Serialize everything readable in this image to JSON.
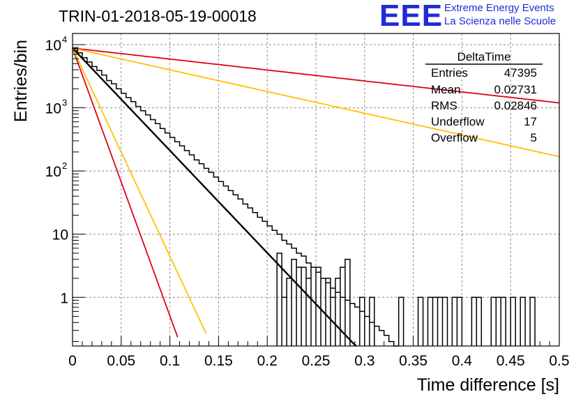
{
  "title": "TRIN-01-2018-05-19-00018",
  "logo": {
    "mark": "EEE",
    "line1": "Extreme Energy Events",
    "line2": "La Scienza nelle Scuole"
  },
  "stats": {
    "name": "DeltaTime",
    "rows": [
      {
        "label": "Entries",
        "value": "47395"
      },
      {
        "label": "Mean",
        "value": "0.02731"
      },
      {
        "label": "RMS",
        "value": "0.02846"
      },
      {
        "label": "Underflow",
        "value": "17"
      },
      {
        "label": "Overflow",
        "value": "5"
      }
    ]
  },
  "chart_data": {
    "type": "histogram",
    "ylabel": "Entries/bin",
    "xlabel": "Time difference [s]",
    "xlim": [
      0,
      0.5
    ],
    "ylim": [
      0.17,
      15000
    ],
    "yscale": "log",
    "grid": true,
    "x_ticks": [
      "0",
      "0.05",
      "0.1",
      "0.15",
      "0.2",
      "0.25",
      "0.3",
      "0.35",
      "0.4",
      "0.45",
      "0.5"
    ],
    "y_ticks": [
      {
        "value": 1,
        "base": "1",
        "exp": ""
      },
      {
        "value": 10,
        "base": "10",
        "exp": ""
      },
      {
        "value": 100,
        "base": "10",
        "exp": "2"
      },
      {
        "value": 1000,
        "base": "10",
        "exp": "3"
      },
      {
        "value": 10000,
        "base": "10",
        "exp": "4"
      }
    ],
    "histogram": {
      "bin_width": 0.005,
      "color": "#000000",
      "counts": [
        8600,
        7400,
        6200,
        5300,
        4500,
        3900,
        3300,
        2700,
        2400,
        2000,
        1700,
        1450,
        1250,
        1050,
        900,
        770,
        650,
        560,
        470,
        400,
        340,
        290,
        250,
        210,
        180,
        150,
        130,
        110,
        95,
        80,
        68,
        58,
        49,
        42,
        36,
        30,
        26,
        22,
        18.5,
        16,
        13.5,
        11.5,
        10,
        8,
        7,
        6,
        5,
        4.5,
        3.5,
        3,
        2.5,
        2,
        1.7,
        1.4,
        1.2,
        1,
        0.9,
        0.8,
        0.7,
        0.6,
        0.5,
        0.4,
        0.35,
        0.3,
        0.25,
        0.2,
        0.17
      ],
      "tail_counts": [
        {
          "x": 0.21,
          "v": 5
        },
        {
          "x": 0.215,
          "v": 1
        },
        {
          "x": 0.22,
          "v": 2
        },
        {
          "x": 0.225,
          "v": 4
        },
        {
          "x": 0.23,
          "v": 3
        },
        {
          "x": 0.235,
          "v": 3
        },
        {
          "x": 0.24,
          "v": 2
        },
        {
          "x": 0.245,
          "v": 3
        },
        {
          "x": 0.25,
          "v": 3
        },
        {
          "x": 0.255,
          "v": 2
        },
        {
          "x": 0.26,
          "v": 2
        },
        {
          "x": 0.265,
          "v": 1
        },
        {
          "x": 0.27,
          "v": 2
        },
        {
          "x": 0.275,
          "v": 3
        },
        {
          "x": 0.28,
          "v": 4
        },
        {
          "x": 0.295,
          "v": 1
        },
        {
          "x": 0.305,
          "v": 1
        },
        {
          "x": 0.335,
          "v": 1
        },
        {
          "x": 0.355,
          "v": 1
        },
        {
          "x": 0.365,
          "v": 1
        },
        {
          "x": 0.37,
          "v": 1
        },
        {
          "x": 0.375,
          "v": 1
        },
        {
          "x": 0.38,
          "v": 1
        },
        {
          "x": 0.39,
          "v": 1
        },
        {
          "x": 0.395,
          "v": 1
        },
        {
          "x": 0.41,
          "v": 1
        },
        {
          "x": 0.415,
          "v": 1
        },
        {
          "x": 0.43,
          "v": 1
        },
        {
          "x": 0.435,
          "v": 1
        },
        {
          "x": 0.44,
          "v": 1
        },
        {
          "x": 0.45,
          "v": 1
        },
        {
          "x": 0.46,
          "v": 1
        },
        {
          "x": 0.47,
          "v": 1
        }
      ]
    },
    "fits": [
      {
        "color": "#000000",
        "y0": 8800,
        "tau": 0.02681,
        "xmax": 0.293
      },
      {
        "color": "#e0001a",
        "y0": 8800,
        "tau": 0.01025,
        "xmax": 0.108
      },
      {
        "color": "#ffc000",
        "y0": 8800,
        "tau": 0.01319,
        "xmax": 0.137
      },
      {
        "color": "#e0001a",
        "y0": 8800,
        "tau": 0.2506,
        "xmax": 0.5
      },
      {
        "color": "#ffc000",
        "y0": 8800,
        "tau": 0.1264,
        "xmax": 0.5
      }
    ]
  }
}
